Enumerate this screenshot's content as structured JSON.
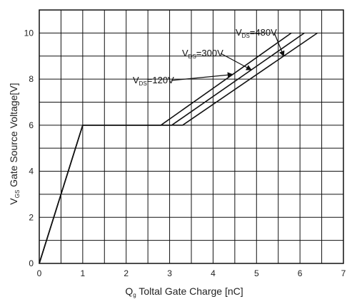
{
  "chart_data": {
    "type": "line",
    "title": "",
    "xlabel": {
      "main": "Q",
      "sub": "g",
      "rest": " Toltal Gate Charge [nC]"
    },
    "ylabel": {
      "main": "V",
      "sub": "GS",
      "rest": " Gate Source Voltage[V]"
    },
    "xlim": [
      0,
      7
    ],
    "ylim": [
      0,
      11
    ],
    "x_ticks": [
      "0",
      "1",
      "2",
      "3",
      "4",
      "5",
      "6",
      "7"
    ],
    "y_ticks": [
      "0",
      "2",
      "4",
      "6",
      "8",
      "10"
    ],
    "grid": true,
    "series": [
      {
        "id": "vds-120",
        "x": [
          0,
          1,
          2.8,
          5.8
        ],
        "y": [
          0,
          6,
          6,
          10
        ]
      },
      {
        "id": "vds-300",
        "x": [
          0,
          1,
          3.05,
          6.1
        ],
        "y": [
          0,
          6,
          6,
          10
        ]
      },
      {
        "id": "vds-480",
        "x": [
          0,
          1,
          3.3,
          6.4
        ],
        "y": [
          0,
          6,
          6,
          10
        ]
      }
    ],
    "annotations": [
      {
        "target": "vds-120",
        "prefix": "V",
        "sub": "DS",
        "text": "=120V"
      },
      {
        "target": "vds-300",
        "prefix": "V",
        "sub": "DS",
        "text": "=300V"
      },
      {
        "target": "vds-480",
        "prefix": "V",
        "sub": "DS",
        "text": "=480V"
      }
    ]
  }
}
